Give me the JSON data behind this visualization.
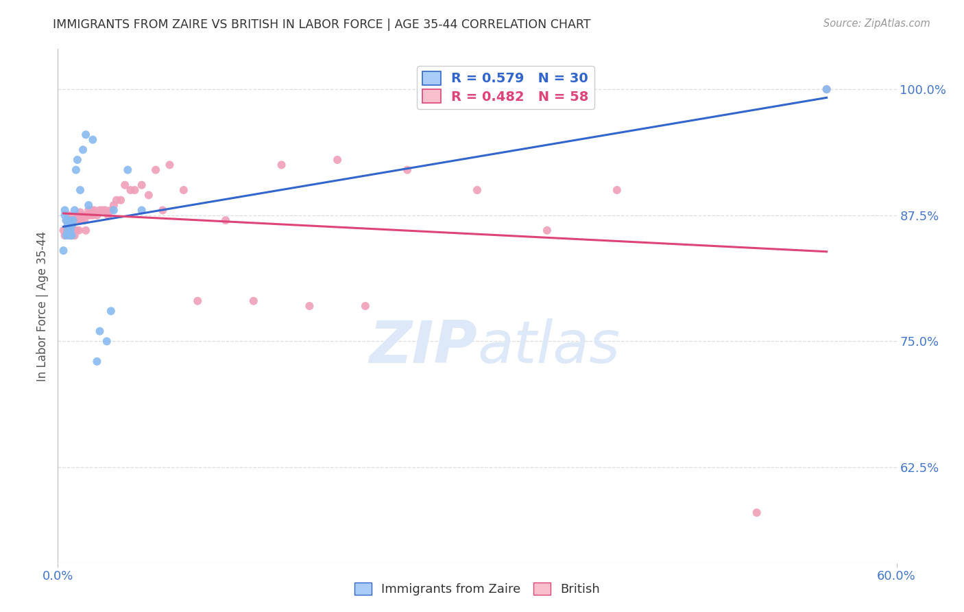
{
  "title": "IMMIGRANTS FROM ZAIRE VS BRITISH IN LABOR FORCE | AGE 35-44 CORRELATION CHART",
  "source": "Source: ZipAtlas.com",
  "ylabel": "In Labor Force | Age 35-44",
  "xmin": 0.0,
  "xmax": 0.6,
  "ymin": 0.53,
  "ymax": 1.04,
  "yticks": [
    0.625,
    0.75,
    0.875,
    1.0
  ],
  "ytick_labels": [
    "62.5%",
    "75.0%",
    "87.5%",
    "100.0%"
  ],
  "blue_R": 0.579,
  "blue_N": 30,
  "pink_R": 0.482,
  "pink_N": 58,
  "blue_color": "#88bbf0",
  "pink_color": "#f0a0b8",
  "blue_line_color": "#3366cc",
  "pink_line_color": "#dd4477",
  "legend_blue_fill": "#aaccf8",
  "legend_pink_fill": "#f8c0cc",
  "title_color": "#333333",
  "axis_label_color": "#555555",
  "tick_color": "#4477cc",
  "grid_color": "#dddddd",
  "watermark_color": "#dde8f8",
  "blue_x": [
    0.004,
    0.005,
    0.005,
    0.006,
    0.006,
    0.007,
    0.007,
    0.008,
    0.008,
    0.009,
    0.009,
    0.01,
    0.01,
    0.011,
    0.012,
    0.013,
    0.014,
    0.016,
    0.018,
    0.02,
    0.022,
    0.025,
    0.028,
    0.03,
    0.035,
    0.038,
    0.04,
    0.05,
    0.06,
    0.55
  ],
  "blue_y": [
    0.84,
    0.88,
    0.875,
    0.87,
    0.855,
    0.86,
    0.865,
    0.87,
    0.855,
    0.86,
    0.855,
    0.865,
    0.855,
    0.87,
    0.88,
    0.92,
    0.93,
    0.9,
    0.94,
    0.955,
    0.885,
    0.95,
    0.73,
    0.76,
    0.75,
    0.78,
    0.88,
    0.92,
    0.88,
    1.0
  ],
  "pink_x": [
    0.004,
    0.005,
    0.006,
    0.007,
    0.008,
    0.009,
    0.01,
    0.01,
    0.011,
    0.012,
    0.012,
    0.013,
    0.014,
    0.015,
    0.015,
    0.016,
    0.016,
    0.017,
    0.018,
    0.019,
    0.02,
    0.021,
    0.022,
    0.023,
    0.024,
    0.025,
    0.026,
    0.028,
    0.03,
    0.032,
    0.034,
    0.036,
    0.038,
    0.04,
    0.042,
    0.045,
    0.048,
    0.052,
    0.055,
    0.06,
    0.065,
    0.07,
    0.075,
    0.08,
    0.09,
    0.1,
    0.12,
    0.14,
    0.16,
    0.18,
    0.2,
    0.22,
    0.25,
    0.3,
    0.35,
    0.4,
    0.5,
    0.55
  ],
  "pink_y": [
    0.86,
    0.855,
    0.87,
    0.86,
    0.875,
    0.855,
    0.87,
    0.855,
    0.86,
    0.855,
    0.87,
    0.86,
    0.875,
    0.86,
    0.875,
    0.87,
    0.878,
    0.87,
    0.875,
    0.87,
    0.86,
    0.875,
    0.88,
    0.875,
    0.88,
    0.875,
    0.88,
    0.875,
    0.88,
    0.88,
    0.88,
    0.875,
    0.88,
    0.885,
    0.89,
    0.89,
    0.905,
    0.9,
    0.9,
    0.905,
    0.895,
    0.92,
    0.88,
    0.925,
    0.9,
    0.79,
    0.87,
    0.79,
    0.925,
    0.785,
    0.93,
    0.785,
    0.92,
    0.9,
    0.86,
    0.9,
    0.58,
    1.0
  ],
  "blue_line_x0": 0.004,
  "blue_line_x1": 0.55,
  "pink_line_x0": 0.004,
  "pink_line_x1": 0.55
}
